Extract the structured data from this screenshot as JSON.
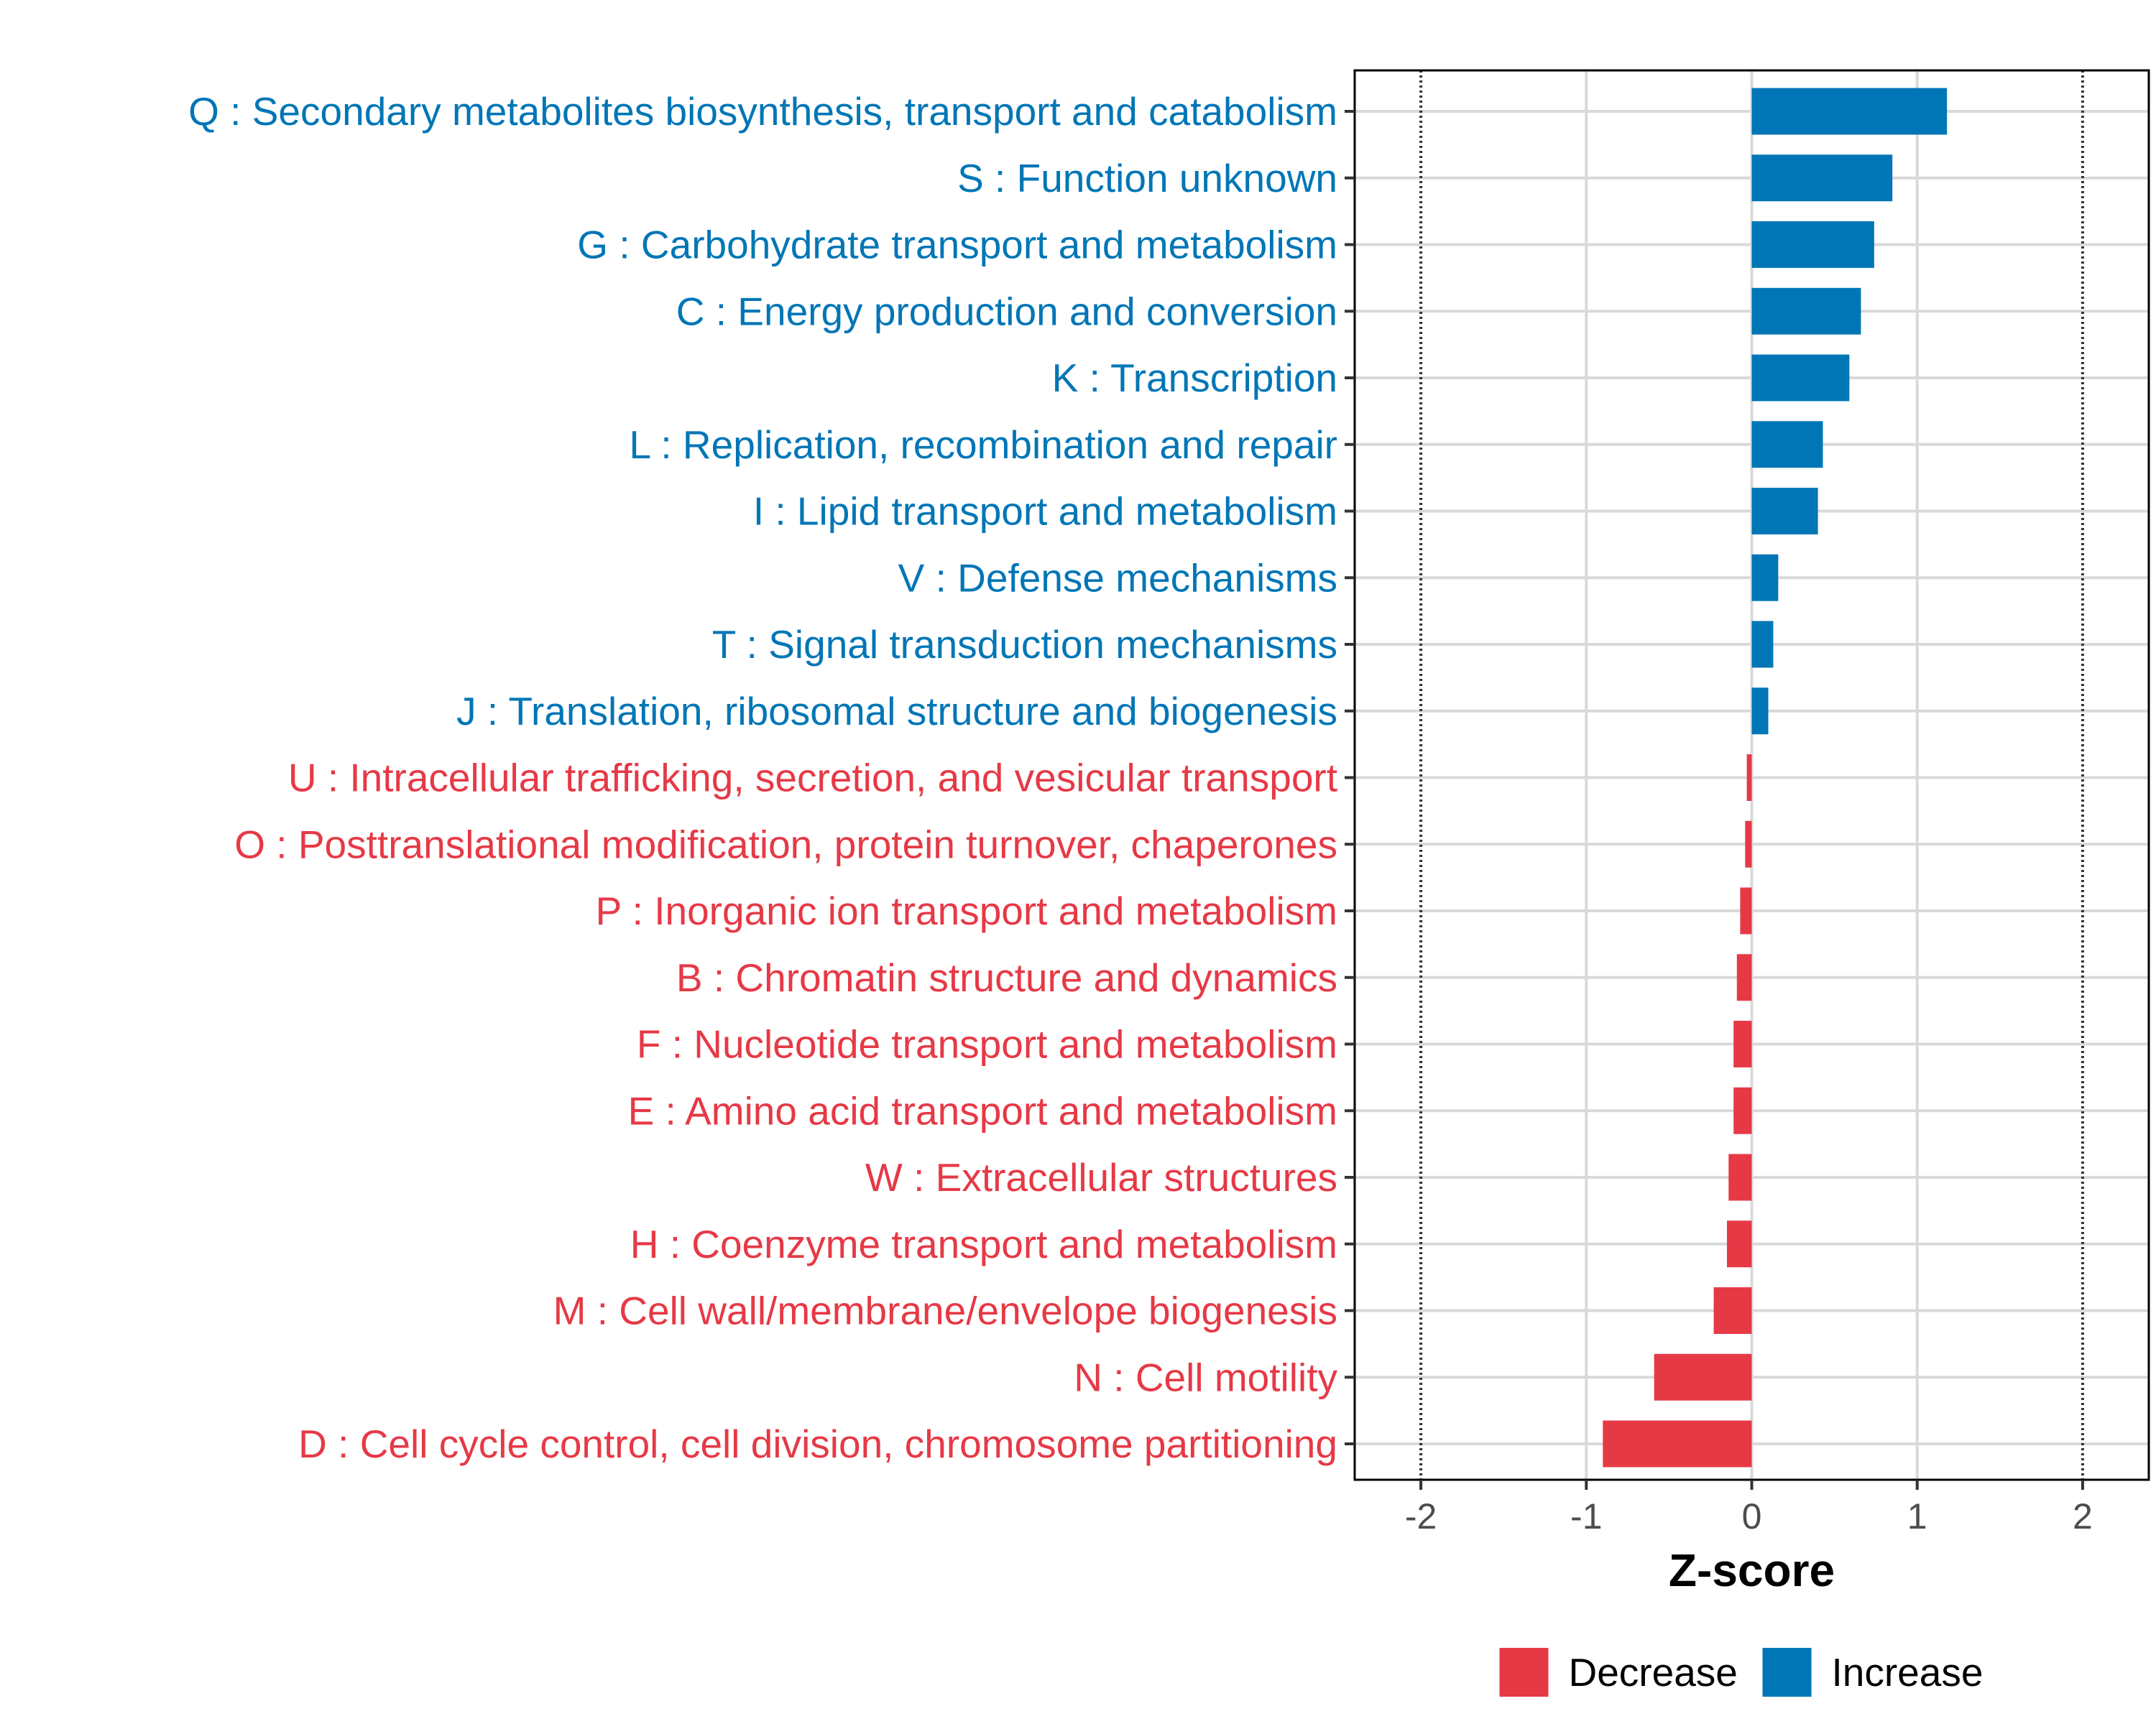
{
  "chart_data": {
    "type": "bar",
    "orientation": "horizontal",
    "title": "",
    "xlabel": "Z-score",
    "ylabel": "",
    "xlim": [
      -2.4,
      2.4
    ],
    "xticks": [
      -2,
      -1,
      0,
      1,
      2
    ],
    "xtick_labels": [
      "-2",
      "-1",
      "0",
      "1",
      "2"
    ],
    "reference_lines": [
      -2,
      2
    ],
    "grid": true,
    "legend_position": "bottom",
    "colors": {
      "Decrease": "#e63946",
      "Increase": "#0076b6",
      "grid": "#d9d9d9",
      "reference_line": "#333333",
      "tick_text": "#4d4d4d"
    },
    "legend": [
      {
        "label": "Decrease",
        "color_key": "Decrease"
      },
      {
        "label": "Increase",
        "color_key": "Increase"
      }
    ],
    "categories": [
      "Q : Secondary metabolites biosynthesis, transport and catabolism",
      "S : Function unknown",
      "G : Carbohydrate transport and metabolism",
      "C : Energy production and conversion",
      "K : Transcription",
      "L : Replication, recombination and repair",
      "I : Lipid transport and metabolism",
      "V : Defense mechanisms",
      "T : Signal transduction mechanisms",
      "J : Translation, ribosomal structure and biogenesis",
      "U : Intracellular trafficking, secretion, and vesicular transport",
      "O : Posttranslational modification, protein turnover, chaperones",
      "P : Inorganic ion transport and metabolism",
      "B : Chromatin structure and dynamics",
      "F : Nucleotide transport and metabolism",
      "E : Amino acid transport and metabolism",
      "W : Extracellular structures",
      "H : Coenzyme transport and metabolism",
      "M : Cell wall/membrane/envelope biogenesis",
      "N : Cell motility",
      "D : Cell cycle control, cell division, chromosome partitioning"
    ],
    "values": [
      1.18,
      0.85,
      0.74,
      0.66,
      0.59,
      0.43,
      0.4,
      0.16,
      0.13,
      0.1,
      -0.03,
      -0.04,
      -0.07,
      -0.09,
      -0.11,
      -0.11,
      -0.14,
      -0.15,
      -0.23,
      -0.59,
      -0.9
    ],
    "groups": [
      "Increase",
      "Increase",
      "Increase",
      "Increase",
      "Increase",
      "Increase",
      "Increase",
      "Increase",
      "Increase",
      "Increase",
      "Decrease",
      "Decrease",
      "Decrease",
      "Decrease",
      "Decrease",
      "Decrease",
      "Decrease",
      "Decrease",
      "Decrease",
      "Decrease",
      "Decrease"
    ]
  }
}
